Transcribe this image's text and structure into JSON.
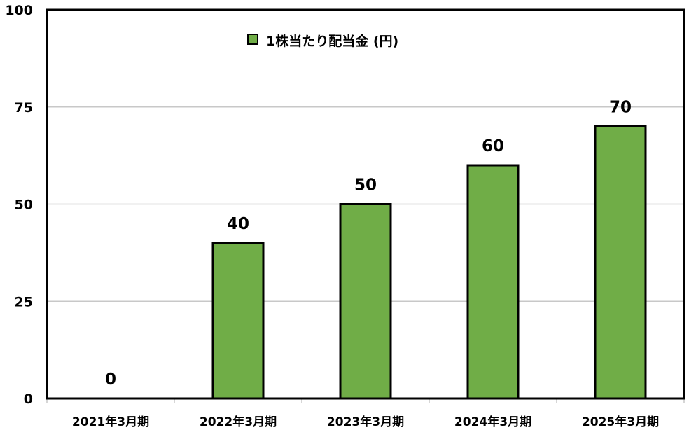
{
  "chart_data": {
    "type": "bar",
    "categories": [
      "2021年3月期",
      "2022年3月期",
      "2023年3月期",
      "2024年3月期",
      "2025年3月期"
    ],
    "series": [
      {
        "name": "1株当たり配当金 (円)",
        "values": [
          0,
          40,
          50,
          60,
          70
        ],
        "color": "#70ad47"
      }
    ],
    "data_labels": [
      "0",
      "40",
      "50",
      "60",
      "70"
    ],
    "ylim": [
      0,
      100
    ],
    "yticks": [
      0,
      25,
      50,
      75,
      100
    ],
    "grid": true,
    "legend": "top-left",
    "title": "",
    "xlabel": "",
    "ylabel": ""
  }
}
